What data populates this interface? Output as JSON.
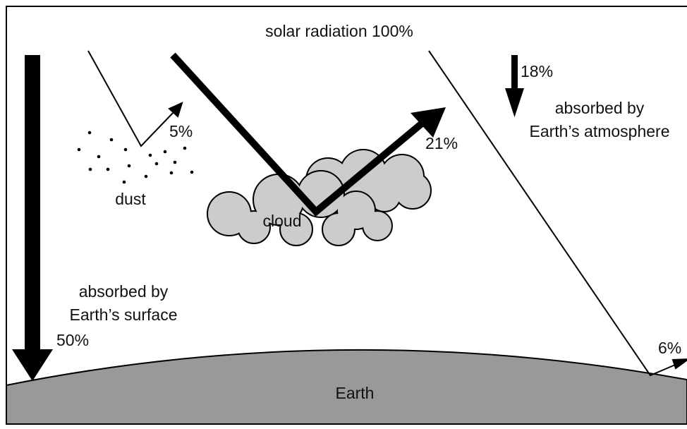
{
  "title": "solar radiation 100%",
  "labels": {
    "atmosphere_percent": "18%",
    "atmosphere_line1": "absorbed by",
    "atmosphere_line2": "Earth’s atmosphere",
    "dust_percent": "5%",
    "dust": "dust",
    "cloud_percent": "21%",
    "cloud": "cloud",
    "surface_line1": "absorbed by",
    "surface_line2": "Earth’s surface",
    "surface_percent": "50%",
    "earth_percent": "6%",
    "earth": "Earth"
  }
}
